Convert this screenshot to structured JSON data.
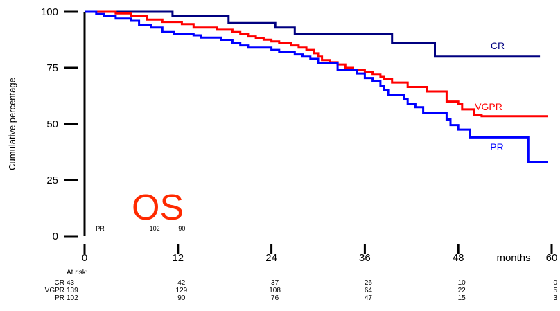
{
  "chart_data": {
    "type": "line",
    "step": true,
    "ylabel": "Cumulative percentage",
    "x_unit_label": "months",
    "overlay_text": "OS",
    "xlim": [
      0,
      60
    ],
    "ylim": [
      0,
      100
    ],
    "xticks": [
      0,
      12,
      24,
      36,
      48,
      60
    ],
    "yticks": [
      0,
      25,
      50,
      75,
      100
    ],
    "series": [
      {
        "name": "CR",
        "color": "#000080",
        "points": [
          [
            0,
            100
          ],
          [
            11.3,
            100
          ],
          [
            11.3,
            98
          ],
          [
            18.5,
            98
          ],
          [
            18.5,
            95
          ],
          [
            24.5,
            95
          ],
          [
            24.5,
            93
          ],
          [
            27,
            93
          ],
          [
            27,
            90
          ],
          [
            39.5,
            90
          ],
          [
            39.5,
            86
          ],
          [
            45,
            86
          ],
          [
            45,
            80
          ],
          [
            58.5,
            80
          ]
        ]
      },
      {
        "name": "VGPR",
        "color": "#ff0000",
        "points": [
          [
            0,
            100
          ],
          [
            4,
            100
          ],
          [
            4,
            99.3
          ],
          [
            6,
            99.3
          ],
          [
            6,
            98
          ],
          [
            8,
            98
          ],
          [
            8,
            96.5
          ],
          [
            10,
            96.5
          ],
          [
            10,
            95.5
          ],
          [
            12.5,
            95.5
          ],
          [
            12.5,
            94.5
          ],
          [
            14,
            94.5
          ],
          [
            14,
            93
          ],
          [
            17,
            93
          ],
          [
            17,
            92
          ],
          [
            19,
            92
          ],
          [
            19,
            91
          ],
          [
            20,
            91
          ],
          [
            20,
            90
          ],
          [
            21,
            90
          ],
          [
            21,
            89
          ],
          [
            22,
            89
          ],
          [
            22,
            88.3
          ],
          [
            23,
            88.3
          ],
          [
            23,
            87.6
          ],
          [
            24,
            87.6
          ],
          [
            24,
            86.8
          ],
          [
            25,
            86.8
          ],
          [
            25,
            86
          ],
          [
            26.5,
            86
          ],
          [
            26.5,
            85
          ],
          [
            27.5,
            85
          ],
          [
            27.5,
            84
          ],
          [
            28.5,
            84
          ],
          [
            28.5,
            83
          ],
          [
            29.5,
            83
          ],
          [
            29.5,
            81.5
          ],
          [
            30,
            81.5
          ],
          [
            30,
            80
          ],
          [
            30.5,
            80
          ],
          [
            30.5,
            78.5
          ],
          [
            31.5,
            78.5
          ],
          [
            31.5,
            77.5
          ],
          [
            32.5,
            77.5
          ],
          [
            32.5,
            76.5
          ],
          [
            33.5,
            76.5
          ],
          [
            33.5,
            75
          ],
          [
            34.5,
            75
          ],
          [
            34.5,
            74
          ],
          [
            36,
            74
          ],
          [
            36,
            73
          ],
          [
            37,
            73
          ],
          [
            37,
            72
          ],
          [
            38,
            72
          ],
          [
            38,
            71
          ],
          [
            38.5,
            71
          ],
          [
            38.5,
            70
          ],
          [
            39.5,
            70
          ],
          [
            39.5,
            68.5
          ],
          [
            41.5,
            68.5
          ],
          [
            41.5,
            66.5
          ],
          [
            44,
            66.5
          ],
          [
            44,
            64.5
          ],
          [
            46.5,
            64.5
          ],
          [
            46.5,
            60
          ],
          [
            48,
            60
          ],
          [
            48,
            59
          ],
          [
            48.5,
            59
          ],
          [
            48.5,
            56.5
          ],
          [
            50,
            56.5
          ],
          [
            50,
            54
          ],
          [
            51,
            54
          ],
          [
            51,
            53.5
          ],
          [
            59.5,
            53.5
          ]
        ]
      },
      {
        "name": "PR",
        "color": "#0000ff",
        "points": [
          [
            0,
            100
          ],
          [
            1.5,
            100
          ],
          [
            1.5,
            99
          ],
          [
            2.5,
            99
          ],
          [
            2.5,
            98
          ],
          [
            4,
            98
          ],
          [
            4,
            97
          ],
          [
            6,
            97
          ],
          [
            6,
            96
          ],
          [
            7,
            96
          ],
          [
            7,
            94
          ],
          [
            8.5,
            94
          ],
          [
            8.5,
            93
          ],
          [
            10,
            93
          ],
          [
            10,
            91
          ],
          [
            11.5,
            91
          ],
          [
            11.5,
            90
          ],
          [
            14,
            90
          ],
          [
            14,
            89.5
          ],
          [
            15,
            89.5
          ],
          [
            15,
            88.5
          ],
          [
            17.5,
            88.5
          ],
          [
            17.5,
            87.5
          ],
          [
            19,
            87.5
          ],
          [
            19,
            86
          ],
          [
            20,
            86
          ],
          [
            20,
            85
          ],
          [
            21,
            85
          ],
          [
            21,
            84
          ],
          [
            24,
            84
          ],
          [
            24,
            83
          ],
          [
            25,
            83
          ],
          [
            25,
            82
          ],
          [
            27,
            82
          ],
          [
            27,
            81
          ],
          [
            28,
            81
          ],
          [
            28,
            80
          ],
          [
            29,
            80
          ],
          [
            29,
            79
          ],
          [
            30,
            79
          ],
          [
            30,
            77
          ],
          [
            32.5,
            77
          ],
          [
            32.5,
            74
          ],
          [
            35,
            74
          ],
          [
            35,
            72.5
          ],
          [
            36,
            72.5
          ],
          [
            36,
            70.5
          ],
          [
            37,
            70.5
          ],
          [
            37,
            69
          ],
          [
            38,
            69
          ],
          [
            38,
            67
          ],
          [
            38.5,
            67
          ],
          [
            38.5,
            65
          ],
          [
            39,
            65
          ],
          [
            39,
            63
          ],
          [
            41,
            63
          ],
          [
            41,
            61
          ],
          [
            41.5,
            61
          ],
          [
            41.5,
            59
          ],
          [
            42.5,
            59
          ],
          [
            42.5,
            57.5
          ],
          [
            43.5,
            57.5
          ],
          [
            43.5,
            55
          ],
          [
            46.5,
            55
          ],
          [
            46.5,
            52
          ],
          [
            47,
            52
          ],
          [
            47,
            49.5
          ],
          [
            48,
            49.5
          ],
          [
            48,
            47.5
          ],
          [
            49.5,
            47.5
          ],
          [
            49.5,
            44
          ],
          [
            57,
            44
          ],
          [
            57,
            33
          ],
          [
            59.5,
            33
          ]
        ]
      }
    ],
    "at_risk": {
      "header": "At risk:",
      "rows": [
        {
          "label": "CR",
          "values": [
            "43",
            "42",
            "37",
            "26",
            "10",
            "0"
          ]
        },
        {
          "label": "VGPR",
          "values": [
            "139",
            "129",
            "108",
            "64",
            "22",
            "5"
          ]
        },
        {
          "label": "PR",
          "values": [
            "102",
            "90",
            "76",
            "47",
            "15",
            "3"
          ]
        }
      ]
    },
    "ghost_text": [
      "PR",
      "102",
      "90"
    ]
  }
}
